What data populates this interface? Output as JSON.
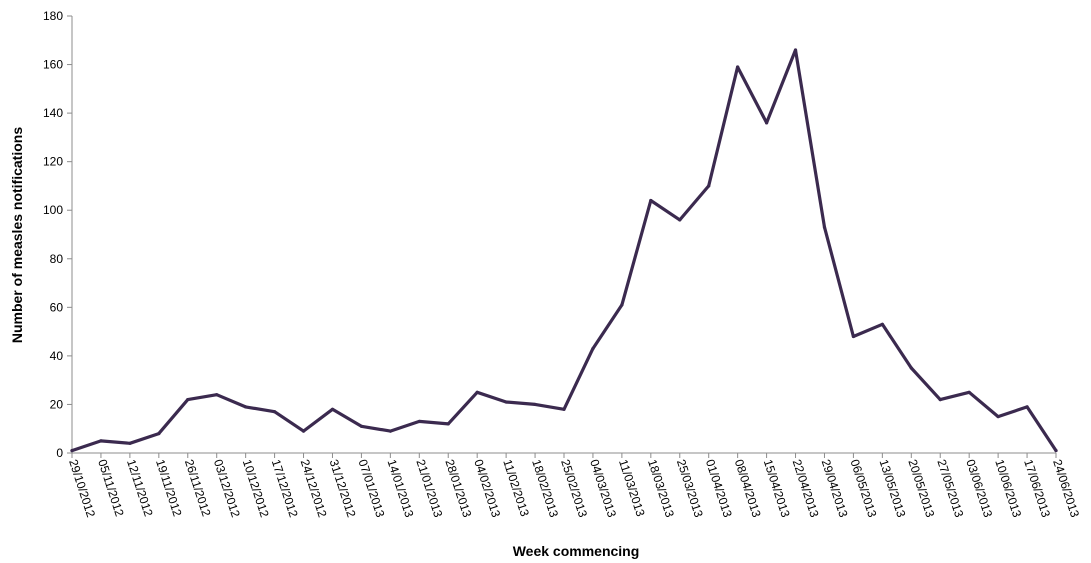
{
  "chart_data": {
    "type": "line",
    "title": "",
    "xlabel": "Week commencing",
    "ylabel": "Number of measles notifications",
    "ylim": [
      0,
      180
    ],
    "yticks": [
      0,
      20,
      40,
      60,
      80,
      100,
      120,
      140,
      160,
      180
    ],
    "grid": false,
    "legend": "none",
    "line_color": "#3b2a4f",
    "x": [
      "29/10/2012",
      "05/11/2012",
      "12/11/2012",
      "19/11/2012",
      "26/11/2012",
      "03/12/2012",
      "10/12/2012",
      "17/12/2012",
      "24/12/2012",
      "31/12/2012",
      "07/01/2013",
      "14/01/2013",
      "21/01/2013",
      "28/01/2013",
      "04/02/2013",
      "11/02/2013",
      "18/02/2013",
      "25/02/2013",
      "04/03/2013",
      "11/03/2013",
      "18/03/2013",
      "25/03/2013",
      "01/04/2013",
      "08/04/2013",
      "15/04/2013",
      "22/04/2013",
      "29/04/2013",
      "06/05/2013",
      "13/05/2013",
      "20/05/2013",
      "27/05/2013",
      "03/06/2013",
      "10/06/2013",
      "17/06/2013",
      "24/06/2013"
    ],
    "series": [
      {
        "values": [
          1,
          5,
          4,
          8,
          22,
          24,
          19,
          17,
          9,
          18,
          11,
          9,
          13,
          12,
          25,
          21,
          20,
          18,
          43,
          61,
          104,
          96,
          110,
          159,
          136,
          166,
          93,
          48,
          53,
          35,
          22,
          25,
          15,
          19,
          1
        ]
      }
    ]
  }
}
